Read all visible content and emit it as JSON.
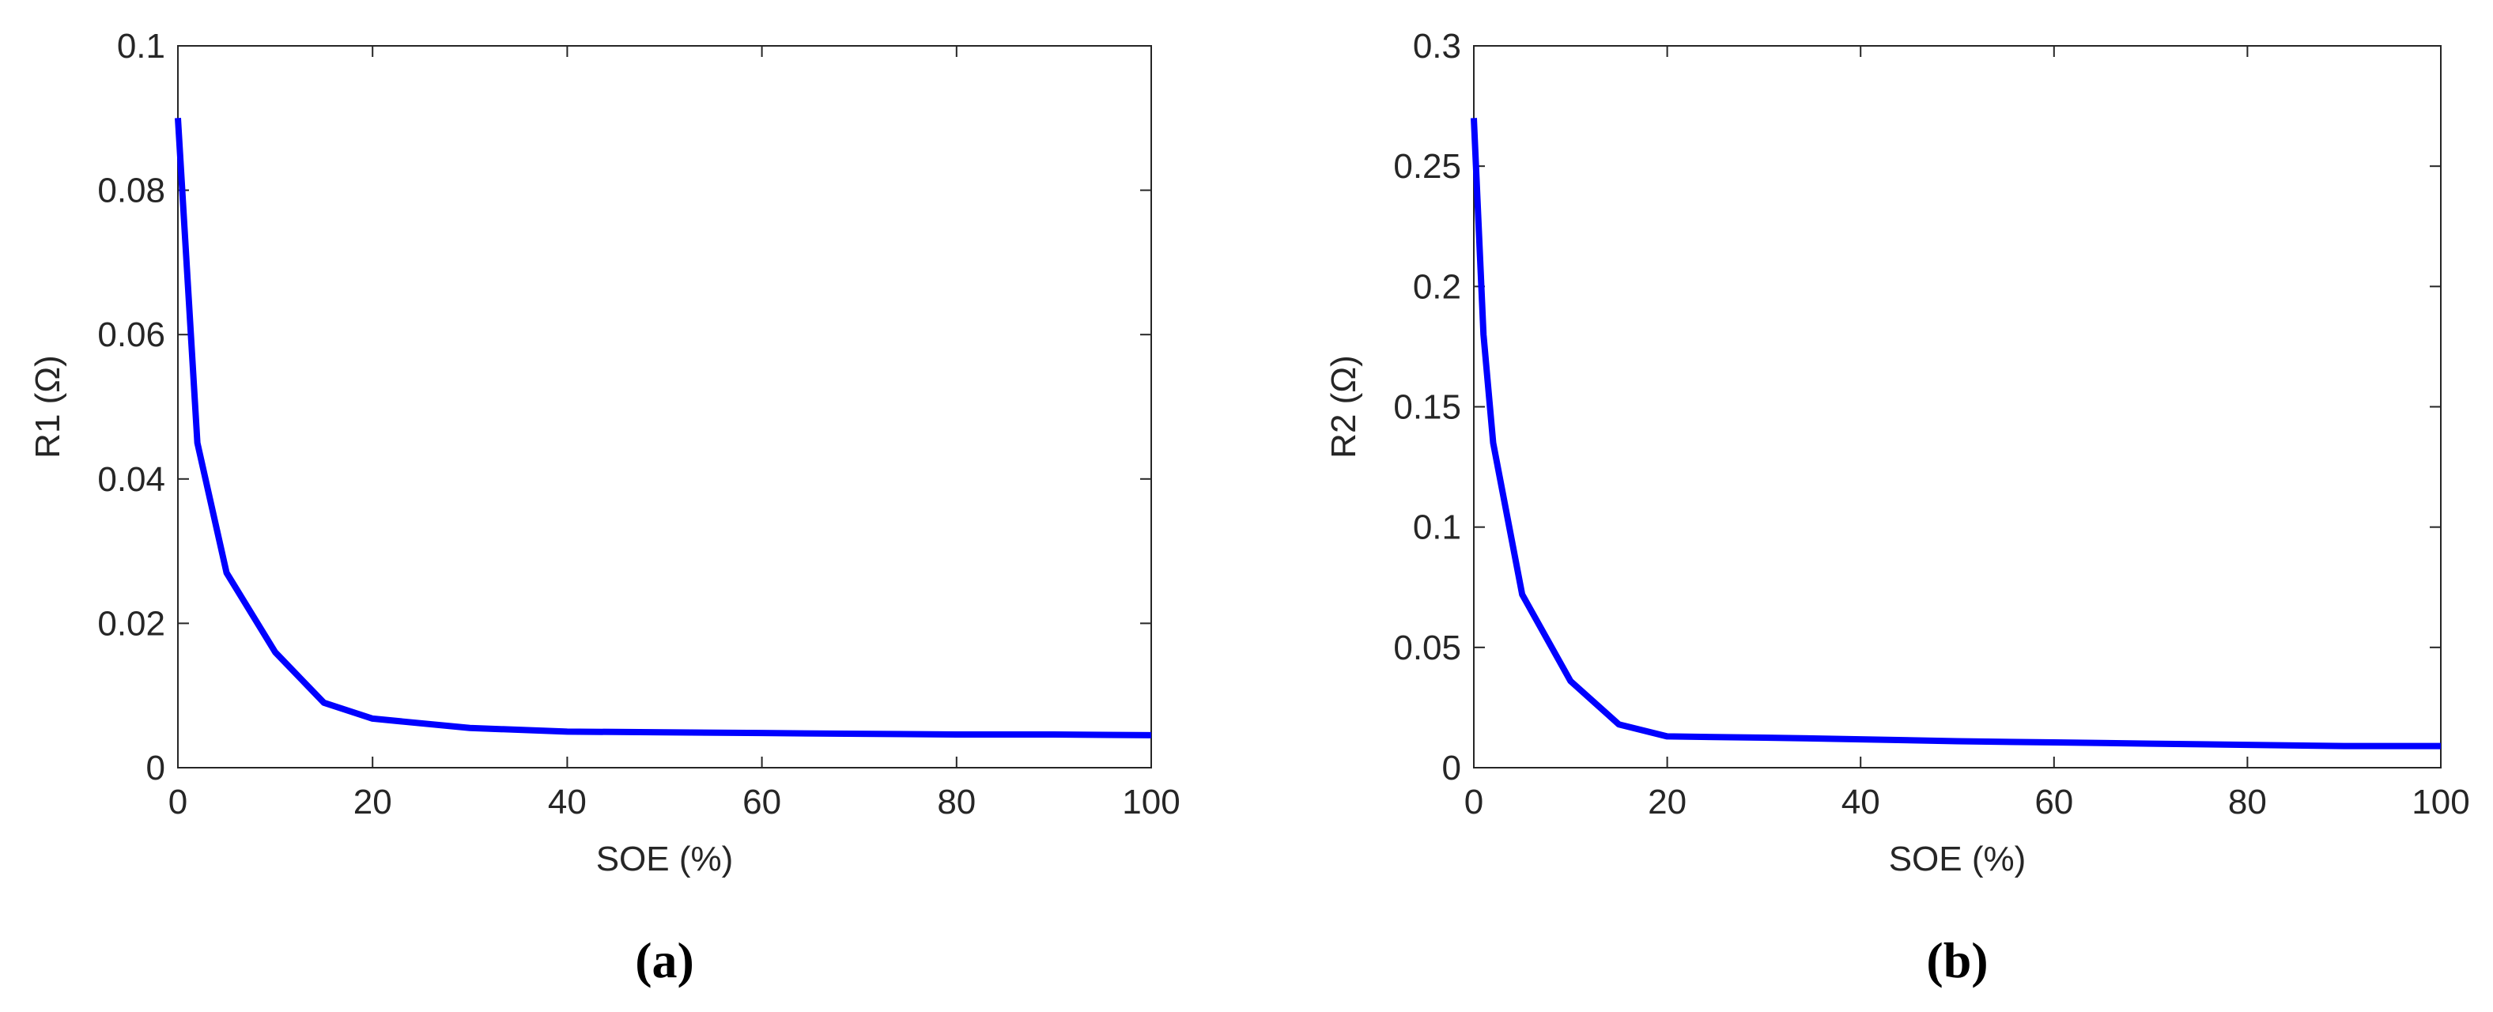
{
  "chart_data": [
    {
      "type": "line",
      "xlabel": "SOE (%)",
      "ylabel": "R1 (Ω)",
      "caption": "(a)",
      "x": [
        0,
        2,
        5,
        10,
        15,
        20,
        30,
        40,
        50,
        60,
        70,
        80,
        90,
        100
      ],
      "series": [
        {
          "color": "#0000ff",
          "values": [
            0.09,
            0.045,
            0.027,
            0.016,
            0.009,
            0.0068,
            0.0055,
            0.005,
            0.0049,
            0.0048,
            0.0047,
            0.0046,
            0.0046,
            0.0045
          ]
        }
      ],
      "xlim": [
        0,
        100
      ],
      "xticks": [
        0,
        20,
        40,
        60,
        80,
        100
      ],
      "ylim": [
        0,
        0.1
      ],
      "yticks": [
        0,
        0.02,
        0.04,
        0.06,
        0.08,
        0.1
      ]
    },
    {
      "type": "line",
      "xlabel": "SOE (%)",
      "ylabel": "R2 (Ω)",
      "caption": "(b)",
      "x": [
        0,
        1,
        2,
        5,
        10,
        15,
        20,
        30,
        40,
        50,
        60,
        70,
        80,
        90,
        100
      ],
      "series": [
        {
          "color": "#0000ff",
          "values": [
            0.27,
            0.18,
            0.135,
            0.072,
            0.036,
            0.018,
            0.013,
            0.0125,
            0.0118,
            0.011,
            0.0105,
            0.01,
            0.0095,
            0.009,
            0.009
          ]
        }
      ],
      "xlim": [
        0,
        100
      ],
      "xticks": [
        0,
        20,
        40,
        60,
        80,
        100
      ],
      "ylim": [
        0,
        0.3
      ],
      "yticks": [
        0,
        0.05,
        0.1,
        0.15,
        0.2,
        0.25,
        0.3
      ]
    }
  ]
}
